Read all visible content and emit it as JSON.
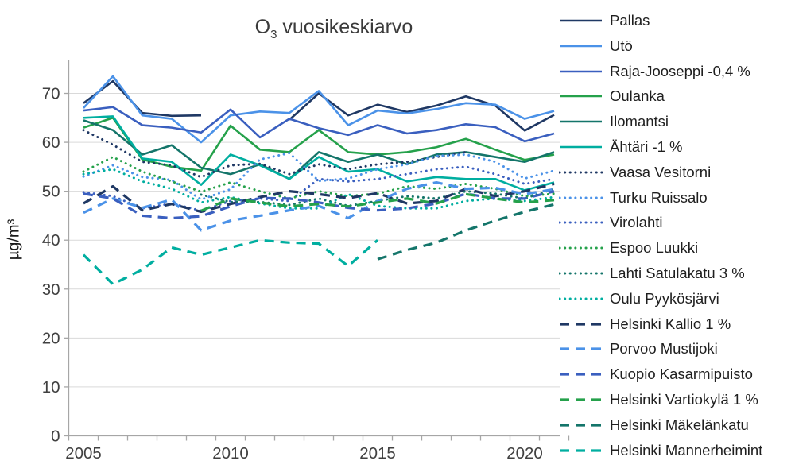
{
  "title": {
    "prefix": "O",
    "subscript": "3",
    "rest": " vuosikeskiarvo"
  },
  "y_axis": {
    "label": "µg/m³",
    "ticks": [
      0,
      10,
      20,
      30,
      40,
      50,
      60,
      70
    ],
    "min": 0,
    "max": 75,
    "grid": true
  },
  "x_axis": {
    "labeled_ticks": [
      2005,
      2010,
      2015,
      2020
    ],
    "range": [
      2005,
      2021
    ]
  },
  "colors": {
    "navy": "#1F3864",
    "lightblue": "#4B92E8",
    "mediumblue": "#3A5FBF",
    "green": "#25A14B",
    "darkgreen": "#14756A",
    "teal": "#00AEA0",
    "grid": "#D9D9D9",
    "axis": "#A6A6A6",
    "tick_text": "#404040"
  },
  "chart_data": {
    "type": "line",
    "title": "O3 vuosikeskiarvo",
    "ylabel": "µg/m³",
    "ylim": [
      0,
      75
    ],
    "legend_position": "right",
    "x": [
      2005,
      2006,
      2007,
      2008,
      2009,
      2010,
      2011,
      2012,
      2013,
      2014,
      2015,
      2016,
      2017,
      2018,
      2019,
      2020,
      2021
    ],
    "series": [
      {
        "name": "Pallas",
        "color": "navy",
        "style": "solid",
        "values": [
          68,
          72.5,
          66,
          65.4,
          65.5,
          null,
          null,
          64.6,
          70,
          65.5,
          67.7,
          66.2,
          67.5,
          69.4,
          67.5,
          62.4,
          65.6
        ]
      },
      {
        "name": "Utö",
        "color": "lightblue",
        "style": "solid",
        "values": [
          67,
          73.5,
          65.5,
          64.8,
          60,
          65.5,
          66.3,
          66,
          70.5,
          63.5,
          66.5,
          65.9,
          66.8,
          68,
          67.7,
          64.8,
          66.4
        ]
      },
      {
        "name": "Raja-Jooseppi -0,4 %",
        "color": "mediumblue",
        "style": "solid",
        "values": [
          66.5,
          67.2,
          63.5,
          63,
          62,
          66.7,
          61,
          64.8,
          62.9,
          61.5,
          63.5,
          61.8,
          62.5,
          63.7,
          63.1,
          60.2,
          61.8
        ]
      },
      {
        "name": "Oulanka",
        "color": "green",
        "style": "solid",
        "values": [
          63,
          65,
          56.5,
          55,
          54.2,
          63.4,
          58.5,
          58,
          62.5,
          58,
          57.5,
          58,
          59,
          60.7,
          58.5,
          56.4,
          57.5
        ]
      },
      {
        "name": "Ilomantsi",
        "color": "darkgreen",
        "style": "solid",
        "values": [
          64.5,
          62.5,
          57.5,
          59.4,
          54.8,
          53.5,
          55.5,
          52.5,
          58,
          56,
          57.5,
          55.5,
          57.5,
          58,
          57,
          56,
          58
        ]
      },
      {
        "name": "Ähtäri -1 %",
        "color": "teal",
        "style": "solid",
        "values": [
          65,
          65.3,
          56.7,
          56,
          51.3,
          57.5,
          55.3,
          52.5,
          57,
          54,
          54.5,
          52,
          52.9,
          52.5,
          52.5,
          50.2,
          51.8
        ]
      },
      {
        "name": "Vaasa Vesitorni",
        "color": "navy",
        "style": "dotted",
        "values": [
          62.5,
          59.5,
          56,
          55.3,
          52.9,
          55.3,
          55.6,
          53.5,
          55.5,
          54.5,
          55.5,
          56,
          57,
          58,
          null,
          null,
          null
        ]
      },
      {
        "name": "Turku Ruissalo",
        "color": "lightblue",
        "style": "dotted",
        "values": [
          53,
          55.3,
          52.9,
          52.3,
          48.3,
          50.4,
          56.5,
          57.8,
          52.1,
          52.6,
          54.5,
          55.5,
          57.2,
          57.5,
          56,
          52.6,
          54.2
        ]
      },
      {
        "name": "Virolahti",
        "color": "mediumblue",
        "style": "dotted",
        "values": [
          49.8,
          49,
          46.5,
          47.5,
          46,
          48,
          48.5,
          48,
          52.5,
          52,
          52.5,
          53.5,
          54.5,
          55,
          53.5,
          51.5,
          52.5
        ]
      },
      {
        "name": "Espoo Luukki",
        "color": "green",
        "style": "dotted",
        "values": [
          54,
          57,
          54,
          52,
          49.9,
          51.8,
          50,
          48.5,
          50,
          49,
          49.5,
          51,
          50.5,
          51.5,
          50.5,
          49,
          49.5
        ]
      },
      {
        "name": "Lahti Satulakatu 3 %",
        "color": "darkgreen",
        "style": "dotted",
        "values": [
          null,
          null,
          null,
          null,
          49.3,
          47.8,
          47.8,
          47.2,
          48.5,
          47,
          48,
          49,
          48.5,
          50,
          49.5,
          48.5,
          50.5
        ]
      },
      {
        "name": "Oulu Pyykösjärvi",
        "color": "teal",
        "style": "dotted",
        "values": [
          53.5,
          54.5,
          52,
          50.5,
          47.7,
          48.8,
          47.5,
          46.5,
          46.5,
          49.4,
          47,
          46.5,
          46.5,
          48,
          48.5,
          48,
          48.8
        ]
      },
      {
        "name": "Helsinki Kallio 1 %",
        "color": "navy",
        "style": "dashed",
        "values": [
          47.5,
          51,
          46.1,
          47.4,
          45.8,
          47.4,
          48.8,
          50,
          49.4,
          48.6,
          49.6,
          47.5,
          48,
          50.5,
          49,
          50,
          51.5
        ]
      },
      {
        "name": "Porvoo Mustijoki",
        "color": "lightblue",
        "style": "dashed",
        "values": [
          45.6,
          48.5,
          46.6,
          48.3,
          42,
          44,
          45,
          46.1,
          47,
          44.5,
          48,
          50.5,
          51.8,
          50.5,
          50.7,
          49.4,
          50.4
        ]
      },
      {
        "name": "Kuopio Kasarmipuisto",
        "color": "mediumblue",
        "style": "dashed",
        "values": [
          49.5,
          48.5,
          45,
          44.5,
          44.9,
          46.9,
          48.6,
          48.5,
          47.7,
          46.6,
          46.1,
          46.5,
          47.5,
          49.5,
          48.5,
          48.5,
          50
        ]
      },
      {
        "name": "Helsinki Vartiokylä 1 %",
        "color": "green",
        "style": "dashed",
        "values": [
          null,
          null,
          null,
          null,
          46,
          48.5,
          47.7,
          46.9,
          47.4,
          46.9,
          47.7,
          48.5,
          47.5,
          49.4,
          48.5,
          47.7,
          48.2
        ]
      },
      {
        "name": "Helsinki Mäkelänkatu",
        "color": "darkgreen",
        "style": "dashed",
        "values": [
          null,
          null,
          null,
          null,
          null,
          null,
          null,
          null,
          null,
          null,
          36.1,
          38,
          39.5,
          42,
          44,
          45.8,
          47.3
        ]
      },
      {
        "name": "Helsinki Mannerheimint",
        "color": "teal",
        "style": "dashed",
        "values": [
          37,
          31,
          34,
          38.5,
          37,
          38.5,
          40,
          39.5,
          39.3,
          34.7,
          40,
          null,
          null,
          null,
          null,
          null,
          null
        ]
      }
    ]
  }
}
